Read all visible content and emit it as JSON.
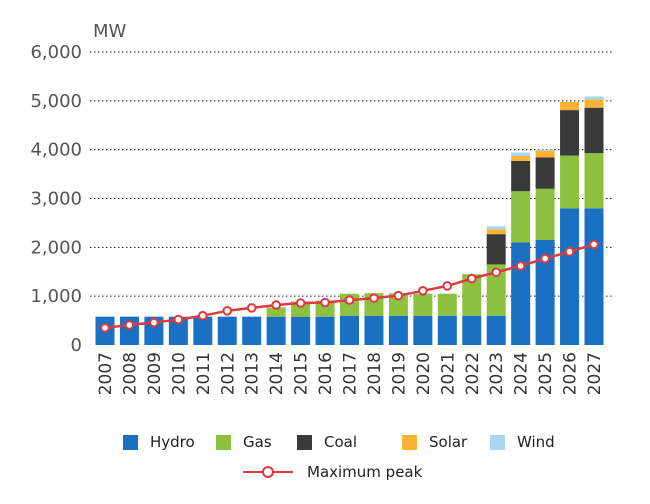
{
  "chart_data": {
    "type": "bar",
    "stacked": true,
    "title": "",
    "unit_label": "MW",
    "xlabel": "",
    "ylabel": "",
    "ylim": [
      0,
      6000
    ],
    "y_ticks": [
      "0",
      "1,000",
      "2,000",
      "3,000",
      "4,000",
      "5,000",
      "6,000"
    ],
    "y_tick_values": [
      0,
      1000,
      2000,
      3000,
      4000,
      5000,
      6000
    ],
    "grid": "horizontal-dotted",
    "legend_position": "bottom",
    "categories": [
      "2007",
      "2008",
      "2009",
      "2010",
      "2011",
      "2012",
      "2013",
      "2014",
      "2015",
      "2016",
      "2017",
      "2018",
      "2019",
      "2020",
      "2021",
      "2022",
      "2023",
      "2024",
      "2025",
      "2026",
      "2027"
    ],
    "series": [
      {
        "name": "Hydro",
        "color": "#1a70c2",
        "values": [
          580,
          580,
          580,
          580,
          580,
          580,
          580,
          580,
          580,
          580,
          600,
          600,
          600,
          600,
          600,
          600,
          600,
          2100,
          2150,
          2800,
          2800
        ]
      },
      {
        "name": "Gas",
        "color": "#8dc13f",
        "values": [
          0,
          0,
          0,
          0,
          0,
          0,
          0,
          190,
          310,
          330,
          450,
          460,
          460,
          450,
          450,
          850,
          1050,
          1050,
          1050,
          1080,
          1130
        ]
      },
      {
        "name": "Coal",
        "color": "#3a3a3a",
        "values": [
          0,
          0,
          0,
          0,
          0,
          0,
          0,
          0,
          0,
          0,
          0,
          0,
          0,
          0,
          0,
          0,
          620,
          620,
          640,
          930,
          930
        ]
      },
      {
        "name": "Solar",
        "color": "#f9b233",
        "values": [
          0,
          0,
          0,
          0,
          0,
          0,
          0,
          0,
          0,
          0,
          0,
          0,
          0,
          0,
          0,
          0,
          100,
          100,
          140,
          170,
          170
        ]
      },
      {
        "name": "Wind",
        "color": "#a6d8f2",
        "values": [
          0,
          0,
          0,
          0,
          0,
          0,
          0,
          0,
          0,
          0,
          0,
          0,
          0,
          0,
          0,
          0,
          60,
          70,
          20,
          0,
          60
        ]
      }
    ],
    "line_series": {
      "name": "Maximum peak",
      "color": "#e03a3e",
      "values": [
        350,
        410,
        460,
        520,
        600,
        700,
        760,
        820,
        860,
        870,
        920,
        960,
        1010,
        1110,
        1210,
        1360,
        1490,
        1620,
        1770,
        1910,
        2060
      ]
    }
  }
}
